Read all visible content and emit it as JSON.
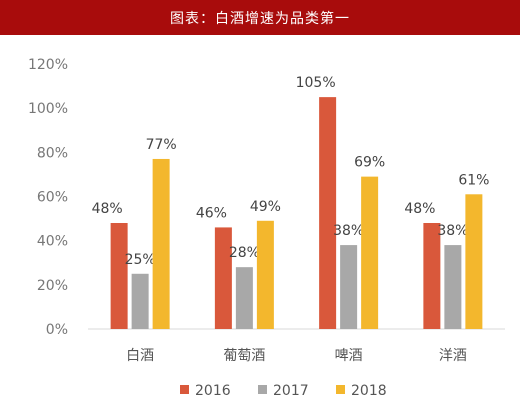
{
  "header": {
    "title": "图表：白酒增速为品类第一"
  },
  "colors": {
    "header_bg": "#a80c0c",
    "s2016": "#d9583b",
    "s2017": "#a8a8a8",
    "s2018": "#f3b72d"
  },
  "chart_data": {
    "type": "bar",
    "title": "图表：白酒增速为品类第一",
    "categories": [
      "白酒",
      "葡萄酒",
      "啤酒",
      "洋酒"
    ],
    "series": [
      {
        "name": "2016",
        "values": [
          48,
          46,
          105,
          48
        ],
        "labels": [
          "48%",
          "46%",
          "105%",
          "48%"
        ]
      },
      {
        "name": "2017",
        "values": [
          25,
          28,
          38,
          38
        ],
        "labels": [
          "25%",
          "28%",
          "38%",
          "38%"
        ]
      },
      {
        "name": "2018",
        "values": [
          77,
          49,
          69,
          61
        ],
        "labels": [
          "77%",
          "49%",
          "69%",
          "61%"
        ]
      }
    ],
    "yticks": [
      "0%",
      "20%",
      "40%",
      "60%",
      "80%",
      "100%",
      "120%"
    ],
    "ylim": [
      0,
      120
    ],
    "grid": false,
    "legend": "bottom"
  }
}
